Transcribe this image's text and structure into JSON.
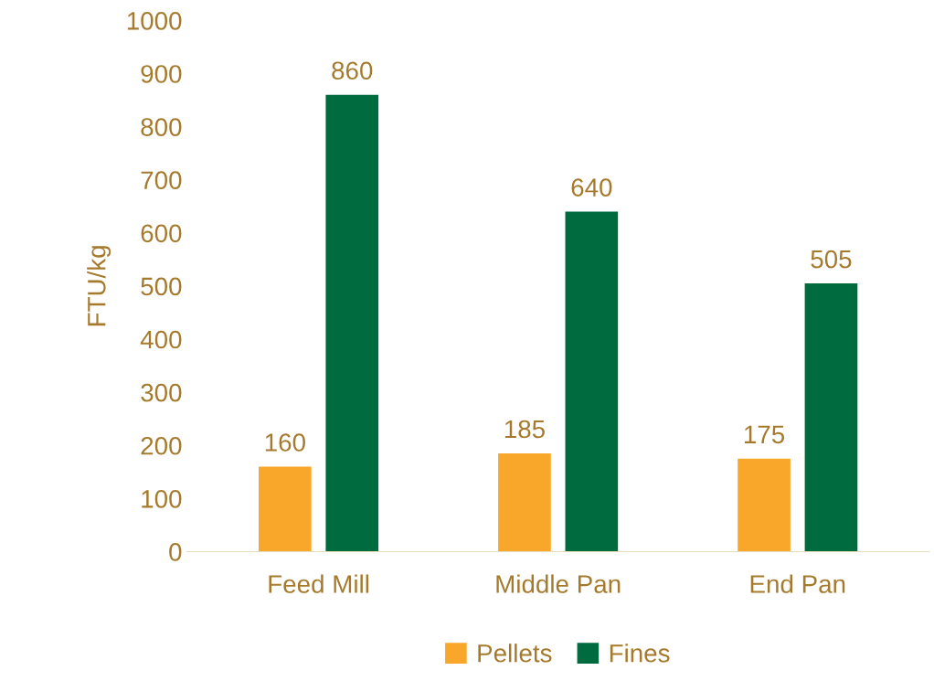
{
  "chart_data": {
    "type": "bar",
    "ylabel": "FTU/kg",
    "categories": [
      "Feed Mill",
      "Middle Pan",
      "End Pan"
    ],
    "series": [
      {
        "name": "Pellets",
        "color": "#f9a72b",
        "values": [
          160,
          185,
          175
        ]
      },
      {
        "name": "Fines",
        "color": "#006b3f",
        "values": [
          860,
          640,
          505
        ]
      }
    ],
    "ylim": [
      0,
      1000
    ],
    "yticks": [
      0,
      100,
      200,
      300,
      400,
      500,
      600,
      700,
      800,
      900,
      1000
    ],
    "data_labels": true,
    "grid": false,
    "legend": "bottom"
  }
}
